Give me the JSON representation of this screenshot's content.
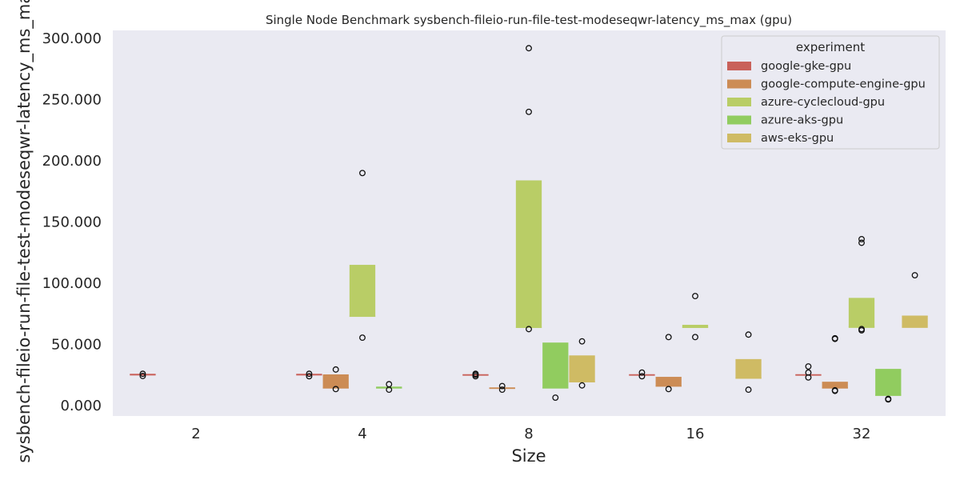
{
  "chart_data": {
    "type": "box",
    "title": "Single Node Benchmark sysbench-fileio-run-file-test-modeseqwr-latency_ms_max (gpu)",
    "xlabel": "Size",
    "ylabel": "sysbench-fileio-run-file-test-modeseqwr-latency_ms_max",
    "categories": [
      "2",
      "4",
      "8",
      "16",
      "32"
    ],
    "ylim": [
      -8,
      306
    ],
    "yticks": [
      0,
      50,
      100,
      150,
      200,
      250,
      300
    ],
    "ytick_labels": [
      "0.000",
      "50.000",
      "100.000",
      "150.000",
      "200.000",
      "250.000",
      "300.000"
    ],
    "grid": false,
    "legend": {
      "title": "experiment",
      "placement": "top-right",
      "entries": [
        "google-gke-gpu",
        "google-compute-engine-gpu",
        "azure-cyclecloud-gpu",
        "azure-aks-gpu",
        "aws-eks-gpu"
      ]
    },
    "series": [
      {
        "name": "google-gke-gpu",
        "color": "#c9615a",
        "boxes": [
          {
            "category": "2",
            "q1": 25.4,
            "median": 25.5,
            "q3": 25.6,
            "outliers": [
              24.2,
              26.0
            ]
          },
          {
            "category": "4",
            "q1": 25.4,
            "median": 25.5,
            "q3": 25.6,
            "outliers": [
              24.0,
              26.0
            ]
          },
          {
            "category": "8",
            "q1": 25.0,
            "median": 25.2,
            "q3": 25.4,
            "outliers": [
              24.0,
              25.2,
              26.0
            ]
          },
          {
            "category": "16",
            "q1": 25.0,
            "median": 25.2,
            "q3": 25.4,
            "outliers": [
              24.0,
              27.0
            ]
          },
          {
            "category": "32",
            "q1": 25.0,
            "median": 25.2,
            "q3": 25.4,
            "outliers": [
              23.0,
              27.0,
              32.0
            ]
          }
        ]
      },
      {
        "name": "google-compute-engine-gpu",
        "color": "#cc8c55",
        "boxes": [
          {
            "category": "4",
            "q1": 14.0,
            "median": 14.5,
            "q3": 25.5,
            "outliers": [
              13.5,
              29.5
            ]
          },
          {
            "category": "8",
            "q1": 14.2,
            "median": 14.4,
            "q3": 14.6,
            "outliers": [
              13.0,
              16.0
            ]
          },
          {
            "category": "16",
            "q1": 15.5,
            "median": 16.0,
            "q3": 23.5,
            "outliers": [
              13.5,
              56.0
            ]
          },
          {
            "category": "32",
            "q1": 14.0,
            "median": 14.5,
            "q3": 19.5,
            "outliers": [
              12.0,
              12.5,
              54.5,
              55.0
            ]
          }
        ]
      },
      {
        "name": "azure-cyclecloud-gpu",
        "color": "#b9cd66",
        "boxes": [
          {
            "category": "4",
            "q1": 72.5,
            "median": 73.0,
            "q3": 115.0,
            "outliers": [
              55.5,
              190.0
            ]
          },
          {
            "category": "8",
            "q1": 63.5,
            "median": 64.0,
            "q3": 184.0,
            "outliers": [
              62.5,
              240.0,
              292.0
            ]
          },
          {
            "category": "16",
            "q1": 63.5,
            "median": 64.0,
            "q3": 66.0,
            "outliers": [
              56.0,
              89.5
            ]
          },
          {
            "category": "32",
            "q1": 63.5,
            "median": 64.5,
            "q3": 88.0,
            "outliers": [
              61.5,
              62.5,
              133.0,
              136.0
            ]
          }
        ]
      },
      {
        "name": "azure-aks-gpu",
        "color": "#91cc5f",
        "boxes": [
          {
            "category": "4",
            "q1": 14.0,
            "median": 14.5,
            "q3": 15.5,
            "outliers": [
              13.0,
              17.5
            ]
          },
          {
            "category": "8",
            "q1": 14.0,
            "median": 14.5,
            "q3": 51.5,
            "outliers": [
              6.5
            ]
          },
          {
            "category": "32",
            "q1": 8.0,
            "median": 8.5,
            "q3": 30.0,
            "outliers": [
              5.0,
              5.5
            ]
          }
        ]
      },
      {
        "name": "aws-eks-gpu",
        "color": "#cfbb64",
        "boxes": [
          {
            "category": "8",
            "q1": 19.0,
            "median": 19.5,
            "q3": 41.0,
            "outliers": [
              16.5,
              52.5
            ]
          },
          {
            "category": "16",
            "q1": 22.0,
            "median": 22.5,
            "q3": 38.0,
            "outliers": [
              13.0,
              58.0
            ]
          },
          {
            "category": "32",
            "q1": 63.5,
            "median": 73.0,
            "q3": 73.0,
            "outliers": [
              106.5
            ]
          }
        ]
      }
    ]
  }
}
